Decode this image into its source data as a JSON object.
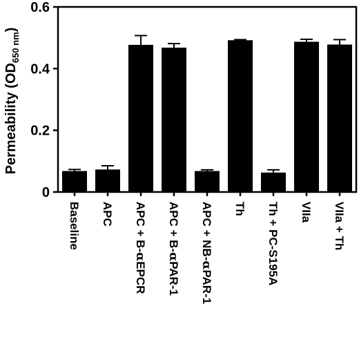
{
  "chart_data": {
    "type": "bar",
    "ylabel": "Permeability (OD",
    "ylabel_subscript": "650 nm",
    "ylabel_close": ")",
    "ylim": [
      0,
      0.6
    ],
    "yticks": [
      0,
      0.2,
      0.4,
      0.6
    ],
    "ytick_labels": [
      "0",
      "0.2",
      "0.4",
      "0.6"
    ],
    "categories": [
      {
        "parts": [
          {
            "t": "Baseline"
          }
        ]
      },
      {
        "parts": [
          {
            "t": "APC"
          }
        ]
      },
      {
        "parts": [
          {
            "t": "APC + B-"
          },
          {
            "t": "α",
            "greek": true
          },
          {
            "t": "EPCR"
          }
        ]
      },
      {
        "parts": [
          {
            "t": "APC + B-"
          },
          {
            "t": "α",
            "greek": true
          },
          {
            "t": "PAR-1"
          }
        ]
      },
      {
        "parts": [
          {
            "t": "APC + NB-"
          },
          {
            "t": "α",
            "greek": true
          },
          {
            "t": "PAR-1"
          }
        ]
      },
      {
        "parts": [
          {
            "t": "Th"
          }
        ]
      },
      {
        "parts": [
          {
            "t": "Th + PC-S195A"
          }
        ]
      },
      {
        "parts": [
          {
            "t": "VIIa"
          }
        ]
      },
      {
        "parts": [
          {
            "t": "VIIa + Th"
          }
        ]
      }
    ],
    "values": [
      0.068,
      0.073,
      0.477,
      0.468,
      0.068,
      0.492,
      0.063,
      0.487,
      0.478
    ],
    "errors": [
      0.005,
      0.012,
      0.03,
      0.013,
      0.004,
      0.002,
      0.009,
      0.008,
      0.016
    ],
    "bar_color": "#000000",
    "grid": false,
    "legend": "none"
  }
}
